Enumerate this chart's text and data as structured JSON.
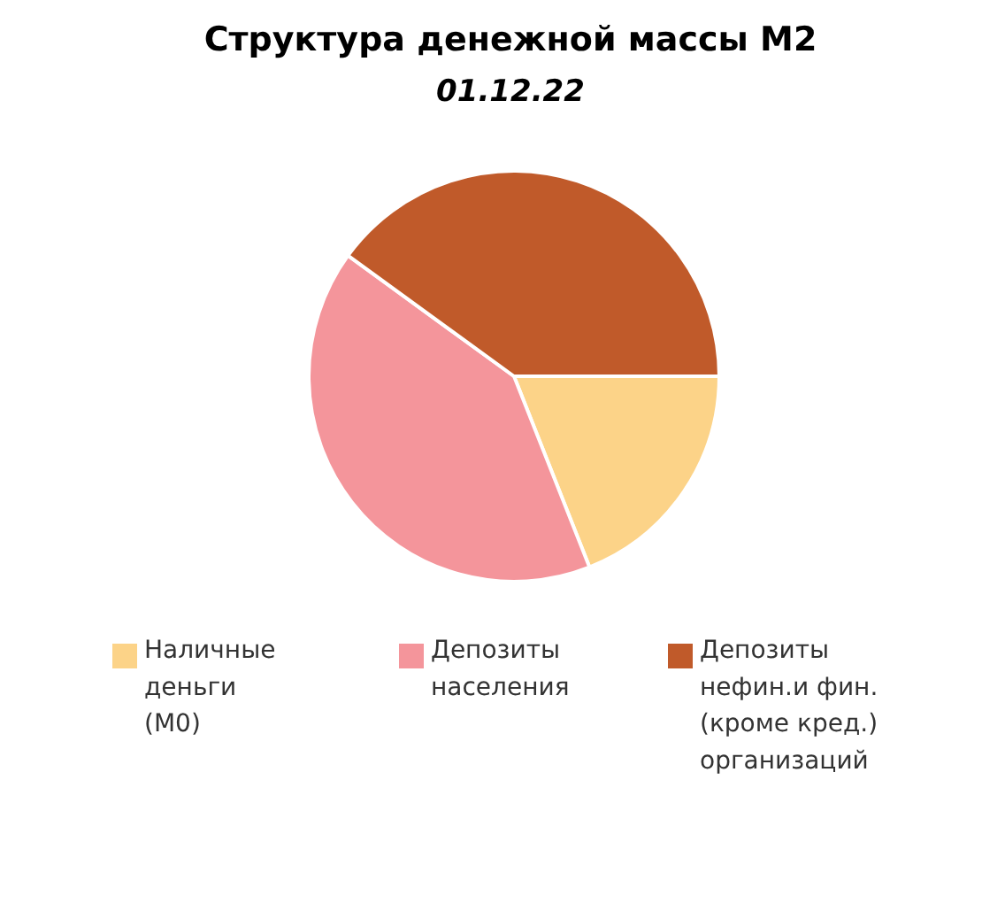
{
  "chart_data": {
    "type": "pie",
    "title": "Структура денежной массы М2",
    "subtitle": "01.12.22",
    "categories": [
      "Наличные\nденьги\n(М0)",
      "Депозиты\nнаселения",
      "Депозиты\nнефин.и фин.\n(кроме кред.)\nорганизаций"
    ],
    "values": [
      19,
      41,
      40
    ],
    "colors": [
      "#fcd388",
      "#f4959b",
      "#c05a2a"
    ],
    "legend": "bottom"
  }
}
